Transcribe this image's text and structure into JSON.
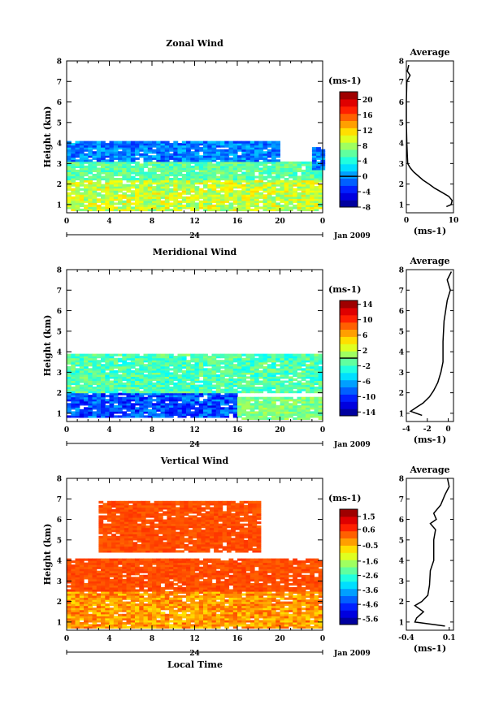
{
  "footer_label": "Local Time",
  "chart_data": [
    {
      "type": "heatmap",
      "name": "zonal",
      "title": "Zonal Wind",
      "ylabel": "Height (km)",
      "xlim": [
        0,
        24
      ],
      "ylim": [
        0.6,
        8
      ],
      "xticks": [
        "0",
        "4",
        "8",
        "12",
        "16",
        "20",
        "0"
      ],
      "yticks": [
        1,
        2,
        3,
        4,
        5,
        6,
        7,
        8
      ],
      "date_axis": {
        "label": "24",
        "suffix": "Jan 2009"
      },
      "colorbar": {
        "unit": "(ms-1)",
        "min": -8,
        "max": 22,
        "ticks": [
          20,
          16,
          12,
          8,
          4,
          0,
          -4,
          -8
        ],
        "contour": 0
      },
      "field_regions": [
        {
          "x": [
            0,
            24
          ],
          "y": [
            0.7,
            2.2
          ],
          "value_range": [
            6,
            12
          ]
        },
        {
          "x": [
            0,
            24
          ],
          "y": [
            2.2,
            3.1
          ],
          "value_range": [
            4,
            8
          ]
        },
        {
          "x": [
            0,
            20
          ],
          "y": [
            3.1,
            4.1
          ],
          "value_range": [
            -3,
            2
          ]
        },
        {
          "x": [
            23,
            24
          ],
          "y": [
            2.7,
            3.8
          ],
          "value_range": [
            -3,
            2
          ]
        }
      ],
      "profile": {
        "title": "Average",
        "xlabel": "(ms-1)",
        "xlim": [
          0,
          10
        ],
        "xticks": [
          "0",
          "10"
        ],
        "y": [
          0.9,
          1.0,
          1.2,
          1.4,
          1.6,
          1.8,
          2.0,
          2.2,
          2.4,
          2.6,
          2.8,
          3.0,
          3.4,
          4.0,
          5.0,
          6.0,
          7.0,
          7.3,
          7.5,
          7.8
        ],
        "x": [
          8.5,
          9.5,
          9.7,
          9.0,
          7.5,
          6.0,
          4.8,
          3.5,
          2.5,
          1.5,
          0.8,
          0.3,
          0.2,
          0.1,
          0.0,
          0.0,
          0.1,
          0.8,
          0.2,
          0.5
        ]
      }
    },
    {
      "type": "heatmap",
      "name": "meridional",
      "title": "Meridional Wind",
      "ylabel": "Height (km)",
      "xlim": [
        0,
        24
      ],
      "ylim": [
        0.6,
        8
      ],
      "xticks": [
        "0",
        "4",
        "8",
        "12",
        "16",
        "20",
        "0"
      ],
      "yticks": [
        1,
        2,
        3,
        4,
        5,
        6,
        7,
        8
      ],
      "date_axis": {
        "label": "24",
        "suffix": "Jan 2009"
      },
      "colorbar": {
        "unit": "(ms-1)",
        "min": -15,
        "max": 15,
        "ticks": [
          14,
          10,
          6,
          2,
          -2,
          -6,
          -10,
          -14
        ],
        "contour": 0
      },
      "field_regions": [
        {
          "x": [
            0,
            16
          ],
          "y": [
            0.8,
            2.0
          ],
          "value_range": [
            -12,
            -6
          ]
        },
        {
          "x": [
            16,
            24
          ],
          "y": [
            0.7,
            1.8
          ],
          "value_range": [
            -2,
            2
          ]
        },
        {
          "x": [
            0,
            24
          ],
          "y": [
            2.0,
            3.9
          ],
          "value_range": [
            -4,
            1
          ]
        }
      ],
      "profile": {
        "title": "Average",
        "xlabel": "(ms-1)",
        "xlim": [
          -4,
          0.5
        ],
        "xticks": [
          "-4",
          "-2",
          "0"
        ],
        "y": [
          0.9,
          1.1,
          1.3,
          1.5,
          1.8,
          2.1,
          2.5,
          3.0,
          3.5,
          4.5,
          5.5,
          6.5,
          7.0,
          7.5,
          7.9
        ],
        "x": [
          -2.5,
          -3.6,
          -3.0,
          -2.4,
          -1.8,
          -1.4,
          -1.0,
          -0.7,
          -0.5,
          -0.5,
          -0.4,
          -0.1,
          0.2,
          -0.1,
          0.3
        ]
      }
    },
    {
      "type": "heatmap",
      "name": "vertical",
      "title": "Vertical Wind",
      "ylabel": "Height (km)",
      "xlim": [
        0,
        24
      ],
      "ylim": [
        0.6,
        8
      ],
      "xticks": [
        "0",
        "4",
        "8",
        "12",
        "16",
        "20",
        "0"
      ],
      "yticks": [
        1,
        2,
        3,
        4,
        5,
        6,
        7,
        8
      ],
      "date_axis": {
        "label": "24",
        "suffix": "Jan 2009"
      },
      "colorbar": {
        "unit": "(ms-1)",
        "min": -6,
        "max": 2,
        "ticks": [
          1.5,
          0.6,
          -0.5,
          -1.6,
          -2.6,
          -3.6,
          -4.6,
          -5.6
        ]
      },
      "field_regions": [
        {
          "x": [
            0,
            24
          ],
          "y": [
            0.7,
            2.5
          ],
          "value_range": [
            -0.8,
            0.4
          ]
        },
        {
          "x": [
            0,
            24
          ],
          "y": [
            2.5,
            4.1
          ],
          "value_range": [
            0.2,
            0.6
          ]
        },
        {
          "x": [
            3,
            18
          ],
          "y": [
            4.4,
            6.9
          ],
          "value_range": [
            0.2,
            0.6
          ]
        }
      ],
      "profile": {
        "title": "Average",
        "xlabel": "(ms-1)",
        "xlim": [
          -0.4,
          0.15
        ],
        "xticks": [
          "-0.4",
          "0.1"
        ],
        "y": [
          0.8,
          1.0,
          1.2,
          1.5,
          1.8,
          2.0,
          2.3,
          2.8,
          3.5,
          4.0,
          5.0,
          5.5,
          5.8,
          6.0,
          6.3,
          6.7,
          7.2,
          7.6,
          8.0
        ],
        "x": [
          0.05,
          -0.3,
          -0.28,
          -0.2,
          -0.3,
          -0.22,
          -0.15,
          -0.13,
          -0.12,
          -0.08,
          -0.08,
          -0.06,
          -0.12,
          -0.05,
          -0.08,
          0.0,
          0.05,
          0.1,
          0.08
        ]
      }
    }
  ]
}
